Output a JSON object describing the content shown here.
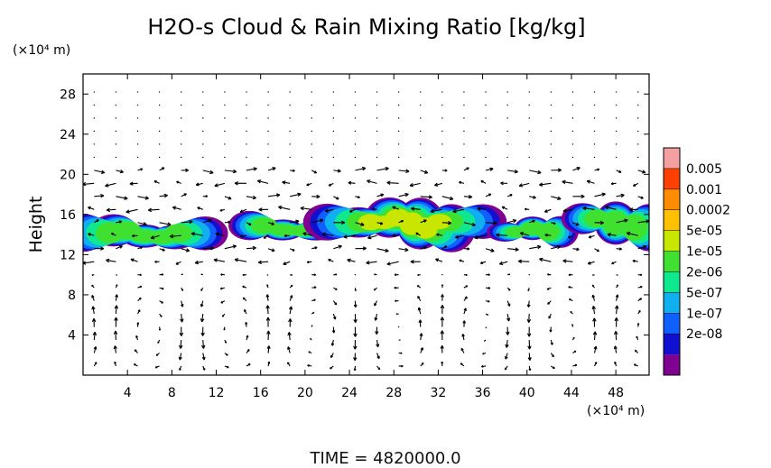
{
  "chart_data": {
    "type": "heatmap",
    "title": "H2O-s Cloud & Rain Mixing Ratio [kg/kg]",
    "xunit": "(×10⁴ m)",
    "yunit": "(×10⁴ m)",
    "ylabel": "Height",
    "xlim": [
      0,
      51
    ],
    "ylim": [
      0,
      30
    ],
    "xticks": [
      4,
      8,
      12,
      16,
      20,
      24,
      28,
      32,
      36,
      40,
      44,
      48
    ],
    "yticks": [
      4,
      8,
      12,
      16,
      20,
      24,
      28
    ],
    "colorbar": {
      "labels": [
        "0.005",
        "0.001",
        "0.0002",
        "5e-05",
        "1e-05",
        "2e-06",
        "5e-07",
        "1e-07",
        "2e-08"
      ],
      "colors": [
        "#f4a0a0",
        "#ff4000",
        "#ff8c00",
        "#ffc000",
        "#c8e600",
        "#40e030",
        "#10e890",
        "#10b0f0",
        "#1060ff",
        "#1010d0",
        "#800090"
      ]
    },
    "cloud_regions": [
      {
        "x": [
          0.0,
          11.0
        ],
        "y": [
          12.0,
          16.0
        ],
        "peak_level": "1e-05"
      },
      {
        "x": [
          15.0,
          21.0
        ],
        "y": [
          12.8,
          16.2
        ],
        "peak_level": "1e-05"
      },
      {
        "x": [
          22.0,
          36.0
        ],
        "y": [
          12.5,
          18.0
        ],
        "peak_level": "5e-05"
      },
      {
        "x": [
          38.0,
          43.0
        ],
        "y": [
          12.5,
          16.0
        ],
        "peak_level": "1e-05"
      },
      {
        "x": [
          45.0,
          51.0
        ],
        "y": [
          12.5,
          17.5
        ],
        "peak_level": "1e-05"
      }
    ],
    "wind_vectors": "quiver field overlaid on cross-section"
  },
  "footer": {
    "time_label": "TIME = 4820000.0"
  }
}
